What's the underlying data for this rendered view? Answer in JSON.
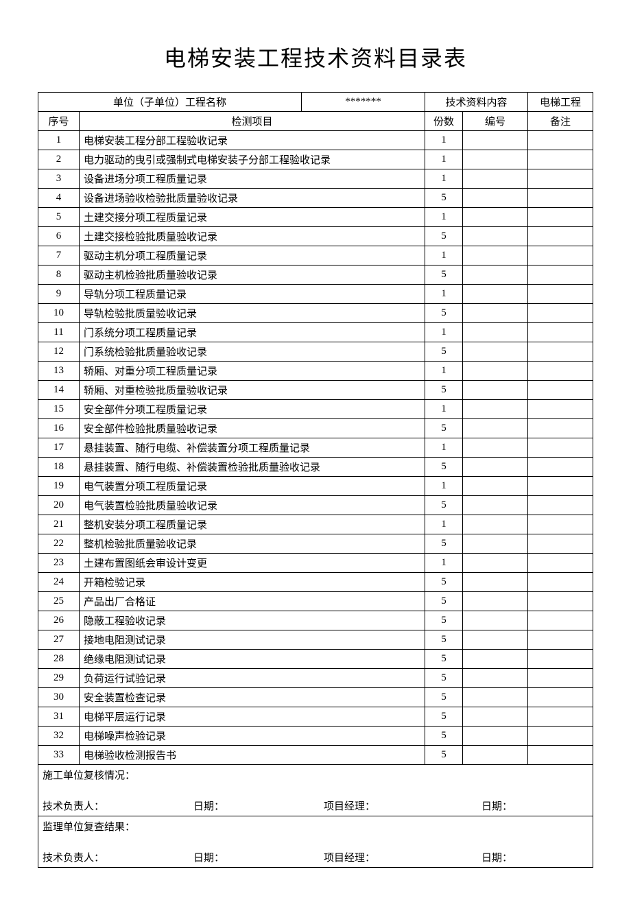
{
  "title": "电梯安装工程技术资料目录表",
  "header": {
    "unit_label": "单位（子单位）工程名称",
    "unit_value": "*******",
    "tech_label": "技术资料内容",
    "project_label": "电梯工程",
    "seq_label": "序号",
    "item_label": "检测项目",
    "copies_label": "份数",
    "number_label": "编号",
    "remark_label": "备注"
  },
  "rows": [
    {
      "seq": "1",
      "item": "电梯安装工程分部工程验收记录",
      "copies": "1",
      "number": "",
      "remark": ""
    },
    {
      "seq": "2",
      "item": "电力驱动的曳引或强制式电梯安装子分部工程验收记录",
      "copies": "1",
      "number": "",
      "remark": ""
    },
    {
      "seq": "3",
      "item": "设备进场分项工程质量记录",
      "copies": "1",
      "number": "",
      "remark": ""
    },
    {
      "seq": "4",
      "item": "设备进场验收检验批质量验收记录",
      "copies": "5",
      "number": "",
      "remark": ""
    },
    {
      "seq": "5",
      "item": "土建交接分项工程质量记录",
      "copies": "1",
      "number": "",
      "remark": ""
    },
    {
      "seq": "6",
      "item": "土建交接检验批质量验收记录",
      "copies": "5",
      "number": "",
      "remark": ""
    },
    {
      "seq": "7",
      "item": "驱动主机分项工程质量记录",
      "copies": "1",
      "number": "",
      "remark": ""
    },
    {
      "seq": "8",
      "item": "驱动主机检验批质量验收记录",
      "copies": "5",
      "number": "",
      "remark": ""
    },
    {
      "seq": "9",
      "item": "导轨分项工程质量记录",
      "copies": "1",
      "number": "",
      "remark": ""
    },
    {
      "seq": "10",
      "item": "导轨检验批质量验收记录",
      "copies": "5",
      "number": "",
      "remark": ""
    },
    {
      "seq": "11",
      "item": "门系统分项工程质量记录",
      "copies": "1",
      "number": "",
      "remark": ""
    },
    {
      "seq": "12",
      "item": "门系统检验批质量验收记录",
      "copies": "5",
      "number": "",
      "remark": ""
    },
    {
      "seq": "13",
      "item": "轿厢、对重分项工程质量记录",
      "copies": "1",
      "number": "",
      "remark": ""
    },
    {
      "seq": "14",
      "item": "轿厢、对重检验批质量验收记录",
      "copies": "5",
      "number": "",
      "remark": ""
    },
    {
      "seq": "15",
      "item": "安全部件分项工程质量记录",
      "copies": "1",
      "number": "",
      "remark": ""
    },
    {
      "seq": "16",
      "item": "安全部件检验批质量验收记录",
      "copies": "5",
      "number": "",
      "remark": ""
    },
    {
      "seq": "17",
      "item": "悬挂装置、随行电缆、补偿装置分项工程质量记录",
      "copies": "1",
      "number": "",
      "remark": ""
    },
    {
      "seq": "18",
      "item": "悬挂装置、随行电缆、补偿装置检验批质量验收记录",
      "copies": "5",
      "number": "",
      "remark": ""
    },
    {
      "seq": "19",
      "item": "电气装置分项工程质量记录",
      "copies": "1",
      "number": "",
      "remark": ""
    },
    {
      "seq": "20",
      "item": "电气装置检验批质量验收记录",
      "copies": "5",
      "number": "",
      "remark": ""
    },
    {
      "seq": "21",
      "item": "整机安装分项工程质量记录",
      "copies": "1",
      "number": "",
      "remark": ""
    },
    {
      "seq": "22",
      "item": "整机检验批质量验收记录",
      "copies": "5",
      "number": "",
      "remark": ""
    },
    {
      "seq": "23",
      "item": "土建布置图纸会审设计变更",
      "copies": "1",
      "number": "",
      "remark": ""
    },
    {
      "seq": "24",
      "item": "开箱检验记录",
      "copies": "5",
      "number": "",
      "remark": ""
    },
    {
      "seq": "25",
      "item": "产品出厂合格证",
      "copies": "5",
      "number": "",
      "remark": ""
    },
    {
      "seq": "26",
      "item": "隐蔽工程验收记录",
      "copies": "5",
      "number": "",
      "remark": ""
    },
    {
      "seq": "27",
      "item": "接地电阻测试记录",
      "copies": "5",
      "number": "",
      "remark": ""
    },
    {
      "seq": "28",
      "item": "绝缘电阻测试记录",
      "copies": "5",
      "number": "",
      "remark": ""
    },
    {
      "seq": "29",
      "item": "负荷运行试验记录",
      "copies": "5",
      "number": "",
      "remark": ""
    },
    {
      "seq": "30",
      "item": "安全装置检查记录",
      "copies": "5",
      "number": "",
      "remark": ""
    },
    {
      "seq": "31",
      "item": "电梯平层运行记录",
      "copies": "5",
      "number": "",
      "remark": ""
    },
    {
      "seq": "32",
      "item": "电梯噪声检验记录",
      "copies": "5",
      "number": "",
      "remark": ""
    },
    {
      "seq": "33",
      "item": "电梯验收检测报告书",
      "copies": "5",
      "number": "",
      "remark": ""
    }
  ],
  "footer": {
    "construction_review": "施工单位复核情况：",
    "supervision_review": "监理单位复查结果：",
    "tech_leader": "技术负责人：",
    "date": "日期：",
    "project_manager": "项目经理："
  }
}
